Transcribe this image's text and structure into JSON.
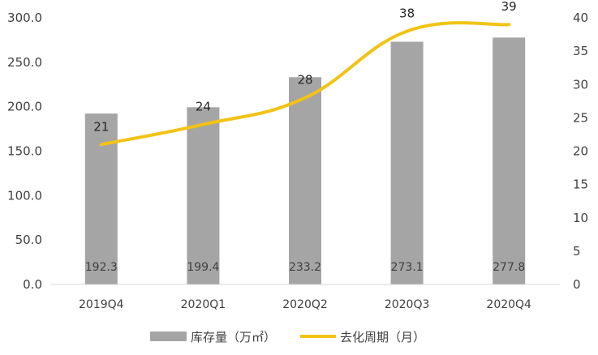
{
  "chart_data": {
    "type": "bar",
    "categories": [
      "2019Q4",
      "2020Q1",
      "2020Q2",
      "2020Q3",
      "2020Q4"
    ],
    "series": [
      {
        "name": "库存量（万㎡）",
        "type": "bar",
        "axis": "left",
        "values": [
          192.3,
          199.4,
          233.2,
          273.1,
          277.8
        ],
        "data_labels": [
          "192.3",
          "199.4",
          "233.2",
          "273.1",
          "277.8"
        ],
        "color": "#a5a5a5"
      },
      {
        "name": "去化周期（月）",
        "type": "line",
        "smooth": true,
        "axis": "right",
        "values": [
          21,
          24,
          28,
          38,
          39
        ],
        "data_labels": [
          "21",
          "24",
          "28",
          "38",
          "39"
        ],
        "color": "#f2c314"
      }
    ],
    "left_axis": {
      "range": [
        0,
        300
      ],
      "ticks": [
        "0.0",
        "50.0",
        "100.0",
        "150.0",
        "200.0",
        "250.0",
        "300.0"
      ]
    },
    "right_axis": {
      "range": [
        0,
        40
      ],
      "ticks": [
        "0",
        "5",
        "10",
        "15",
        "20",
        "25",
        "30",
        "35",
        "40"
      ]
    },
    "title": "",
    "xlabel": "",
    "ylabel": "",
    "grid": false,
    "legend_position": "bottom",
    "axis_color": "#d9d9d9"
  }
}
